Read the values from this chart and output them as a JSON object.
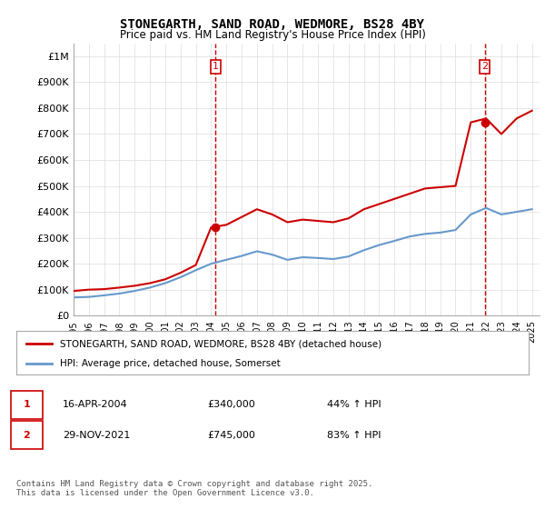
{
  "title": "STONEGARTH, SAND ROAD, WEDMORE, BS28 4BY",
  "subtitle": "Price paid vs. HM Land Registry's House Price Index (HPI)",
  "ylabel_top": "£1M",
  "ylabel_bottom": "£0",
  "yticks": [
    0,
    100000,
    200000,
    300000,
    400000,
    500000,
    600000,
    700000,
    800000,
    900000,
    1000000
  ],
  "ytick_labels": [
    "£0",
    "£100K",
    "£200K",
    "£300K",
    "£400K",
    "£500K",
    "£600K",
    "£700K",
    "£800K",
    "£900K",
    "£1M"
  ],
  "xlim_start": 1995.0,
  "xlim_end": 2025.5,
  "ylim": [
    0,
    1050000
  ],
  "red_line_color": "#cc0000",
  "blue_line_color": "#6699cc",
  "marker1_x": 2004.29,
  "marker1_y": 340000,
  "marker2_x": 2021.91,
  "marker2_y": 745000,
  "annotation1_label": "1",
  "annotation2_label": "2",
  "legend_red_label": "STONEGARTH, SAND ROAD, WEDMORE, BS28 4BY (detached house)",
  "legend_blue_label": "HPI: Average price, detached house, Somerset",
  "table_row1": [
    "1",
    "16-APR-2004",
    "£340,000",
    "44% ↑ HPI"
  ],
  "table_row2": [
    "2",
    "29-NOV-2021",
    "£745,000",
    "83% ↑ HPI"
  ],
  "footer": "Contains HM Land Registry data © Crown copyright and database right 2025.\nThis data is licensed under the Open Government Licence v3.0.",
  "background_color": "#ffffff",
  "grid_color": "#dddddd",
  "hpi_red_years": [
    1995,
    1996,
    1997,
    1998,
    1999,
    2000,
    2001,
    2002,
    2003,
    2004,
    2005,
    2006,
    2007,
    2008,
    2009,
    2010,
    2011,
    2012,
    2013,
    2014,
    2015,
    2016,
    2017,
    2018,
    2019,
    2020,
    2021,
    2022,
    2023,
    2024,
    2025
  ],
  "hpi_red_values": [
    95000,
    100000,
    102000,
    108000,
    115000,
    125000,
    140000,
    165000,
    195000,
    340000,
    350000,
    380000,
    410000,
    390000,
    360000,
    370000,
    365000,
    360000,
    375000,
    410000,
    430000,
    450000,
    470000,
    490000,
    495000,
    500000,
    745000,
    760000,
    700000,
    760000,
    790000
  ],
  "hpi_blue_years": [
    1995,
    1996,
    1997,
    1998,
    1999,
    2000,
    2001,
    2002,
    2003,
    2004,
    2005,
    2006,
    2007,
    2008,
    2009,
    2010,
    2011,
    2012,
    2013,
    2014,
    2015,
    2016,
    2017,
    2018,
    2019,
    2020,
    2021,
    2022,
    2023,
    2024,
    2025
  ],
  "hpi_blue_values": [
    70000,
    72000,
    78000,
    85000,
    95000,
    108000,
    125000,
    148000,
    175000,
    200000,
    215000,
    230000,
    248000,
    235000,
    215000,
    225000,
    222000,
    218000,
    228000,
    252000,
    272000,
    288000,
    305000,
    315000,
    320000,
    330000,
    390000,
    415000,
    390000,
    400000,
    410000
  ]
}
